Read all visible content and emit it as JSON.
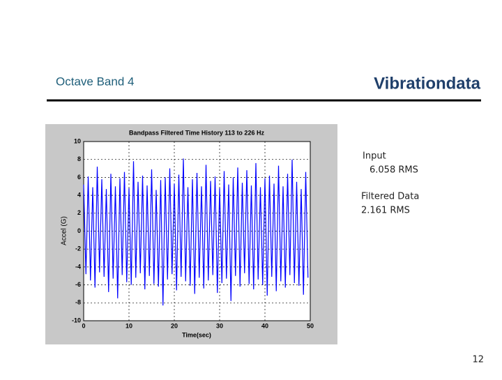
{
  "header": {
    "title": "Octave Band 4",
    "brand": "Vibrationdata"
  },
  "notes": [
    "Input",
    "6.058 RMS",
    "Filtered Data",
    "2.161 RMS"
  ],
  "page_number": 12,
  "chart_data": {
    "type": "line",
    "title": "Bandpass Filtered Time History 113 to 226 Hz",
    "x_label": "Time(sec)",
    "y_label": "Accel (G)",
    "x": [
      0,
      0.5,
      1,
      1.5,
      2,
      2.5,
      3,
      3.5,
      4,
      4.5,
      5,
      5.5,
      6,
      6.5,
      7,
      7.5,
      8,
      8.5,
      9,
      9.5,
      10,
      10.5,
      11,
      11.5,
      12,
      12.5,
      13,
      13.5,
      14,
      14.5,
      15,
      15.5,
      16,
      16.5,
      17,
      17.5,
      18,
      18.5,
      19,
      19.5,
      20,
      20.5,
      21,
      21.5,
      22,
      22.5,
      23,
      23.5,
      24,
      24.5,
      25,
      25.5,
      26,
      26.5,
      27,
      27.5,
      28,
      28.5,
      29,
      29.5,
      30,
      30.5,
      31,
      31.5,
      32,
      32.5,
      33,
      33.5,
      34,
      34.5,
      35,
      35.5,
      36,
      36.5,
      37,
      37.5,
      38,
      38.5,
      39,
      39.5,
      40,
      40.5,
      41,
      41.5,
      42,
      42.5,
      43,
      43.5,
      44,
      44.5,
      45,
      45.5,
      46,
      46.5,
      47,
      47.5,
      48,
      48.5,
      49,
      49.5
    ],
    "values": [
      5.2,
      -4.8,
      6.1,
      -5.5,
      4.9,
      -6.3,
      7.2,
      -4.6,
      5.8,
      -5.1,
      4.7,
      -6.8,
      6.4,
      -5.3,
      5.0,
      -7.5,
      5.9,
      -4.9,
      6.6,
      -5.7,
      4.8,
      -6.0,
      7.8,
      -5.2,
      5.5,
      -4.7,
      6.2,
      -6.5,
      5.1,
      -5.0,
      6.9,
      -5.9,
      4.6,
      -6.2,
      5.7,
      -8.3,
      6.0,
      -5.4,
      7.0,
      -4.8,
      5.3,
      -6.6,
      6.3,
      -5.1,
      8.1,
      -5.6,
      4.9,
      -6.1,
      5.8,
      -7.0,
      6.5,
      -5.2,
      5.0,
      -6.4,
      7.4,
      -5.5,
      5.6,
      -4.9,
      6.1,
      -6.9,
      4.8,
      -5.8,
      6.7,
      -5.3,
      5.2,
      -7.8,
      6.0,
      -5.0,
      7.1,
      -6.2,
      5.4,
      -4.7,
      6.8,
      -5.9,
      5.1,
      -6.5,
      7.6,
      -5.4,
      4.9,
      -6.0,
      5.9,
      -7.2,
      6.2,
      -5.1,
      5.3,
      -6.7,
      7.3,
      -5.6,
      5.0,
      -6.3,
      6.4,
      -4.9,
      8.0,
      -5.8,
      5.5,
      -6.1,
      4.7,
      -7.1,
      6.6,
      -5.2
    ],
    "color": "#0000ff",
    "xlim": [
      0,
      50
    ],
    "xticks": [
      0,
      10,
      20,
      30,
      40,
      50
    ],
    "ylim": [
      -10,
      10
    ],
    "yticks": [
      -10,
      -8,
      -6,
      -4,
      -2,
      0,
      2,
      4,
      6,
      8,
      10
    ],
    "grid": true
  }
}
